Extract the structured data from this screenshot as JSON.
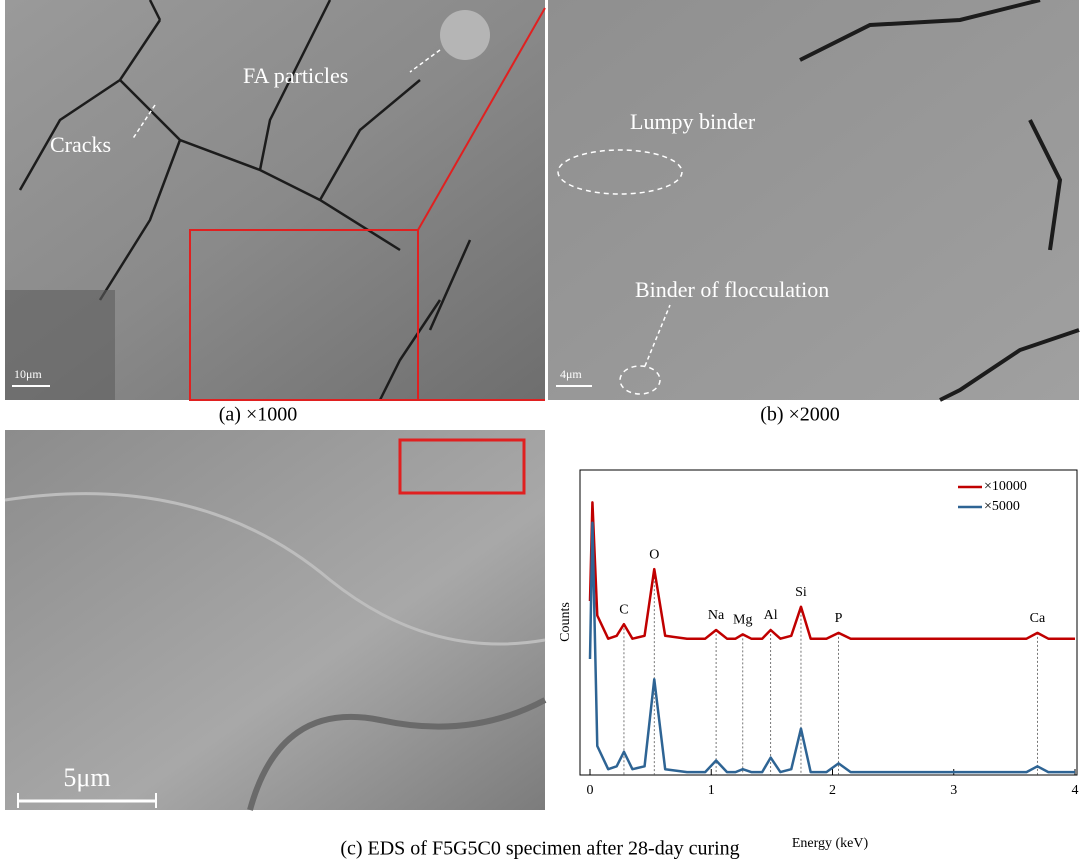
{
  "panels": {
    "a": {
      "caption": "(a) ×1000",
      "labels": [
        "FA particles",
        "Cracks"
      ],
      "scale_bar": "10μm"
    },
    "b": {
      "caption": "(b) ×2000",
      "labels": [
        "Lumpy binder",
        "Binder of flocculation"
      ],
      "scale_bar": "4μm"
    },
    "c": {
      "scale_bar": "5μm"
    }
  },
  "caption": "(c) EDS of F5G5C0 specimen after 28-day curing",
  "chart_data": {
    "type": "line",
    "xlabel": "Energy (keV)",
    "ylabel": "Counts",
    "xlim": [
      0,
      4
    ],
    "xticks": [
      0,
      1,
      2,
      3,
      4
    ],
    "ylim": [
      0,
      100
    ],
    "legend": "upper right",
    "peaks": [
      {
        "label": "C",
        "energy": 0.28
      },
      {
        "label": "O",
        "energy": 0.53
      },
      {
        "label": "Na",
        "energy": 1.04
      },
      {
        "label": "Mg",
        "energy": 1.26
      },
      {
        "label": "Al",
        "energy": 1.49
      },
      {
        "label": "Si",
        "energy": 1.74
      },
      {
        "label": "P",
        "energy": 2.05
      },
      {
        "label": "Ca",
        "energy": 3.69
      }
    ],
    "x": [
      0,
      0.02,
      0.06,
      0.15,
      0.22,
      0.28,
      0.35,
      0.45,
      0.53,
      0.62,
      0.8,
      0.95,
      1.04,
      1.13,
      1.2,
      1.26,
      1.33,
      1.42,
      1.49,
      1.57,
      1.66,
      1.74,
      1.82,
      1.95,
      2.05,
      2.15,
      2.3,
      3,
      3.6,
      3.69,
      3.78,
      4
    ],
    "series": [
      {
        "name": "×10000",
        "color": "#c00000",
        "values": [
          60,
          94,
          55,
          47,
          48,
          52,
          47,
          48,
          71,
          48,
          47,
          47,
          50,
          47,
          47,
          48.5,
          47,
          47,
          50,
          47,
          48,
          58,
          47,
          47,
          49,
          47,
          47,
          47,
          47,
          49,
          47,
          47
        ]
      },
      {
        "name": "×5000",
        "color": "#2e6494",
        "values": [
          40,
          87,
          10,
          2,
          3,
          8,
          2,
          3,
          33,
          2,
          1,
          1,
          5,
          1,
          1,
          2,
          1,
          1,
          6,
          1,
          2,
          16,
          1,
          1,
          4,
          1,
          1,
          1,
          1,
          3,
          1,
          1
        ]
      }
    ]
  }
}
